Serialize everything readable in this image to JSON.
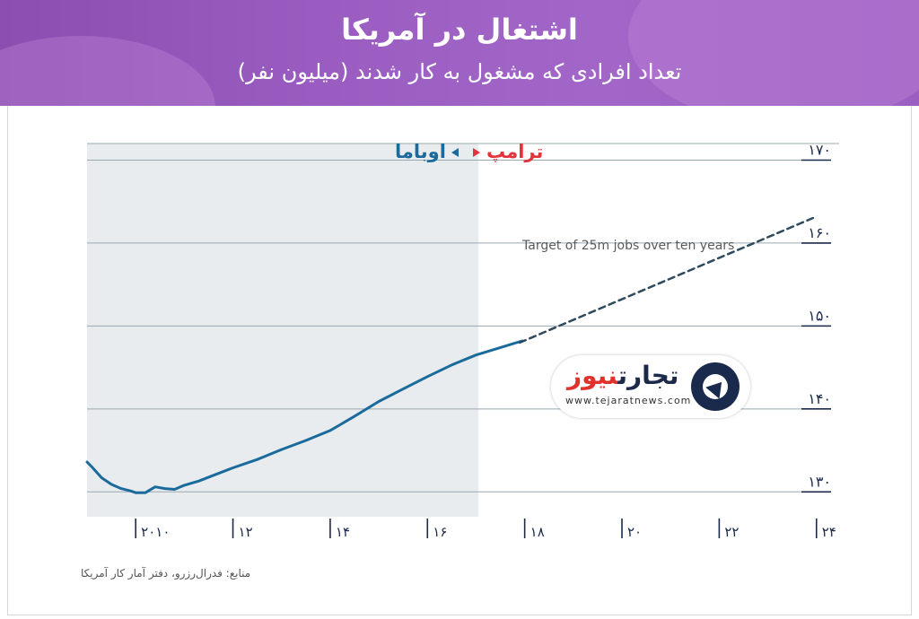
{
  "header": {
    "title": "اشتغال در آمریکا",
    "subtitle": "تعداد افرادی که مشغول به کار شدند (میلیون نفر)"
  },
  "source": "منابع: فدرال‌رزرو، دفتر آمار کار آمریکا",
  "logo": {
    "name_main": "تجارت",
    "name_accent": "نیوز",
    "url": "www.tejaratnews.com"
  },
  "colors": {
    "obama": "#1a6b9c",
    "trump": "#e2343d",
    "line": "#1a6b9c",
    "target": "#2e4a5c",
    "shade": "#e9ecee",
    "grid": "#9aa8b0",
    "axis": "#1c2a4a",
    "header": "#9a5cc0"
  },
  "chart_data": {
    "type": "line",
    "xlim": [
      2009,
      2024.3
    ],
    "ylim": [
      127,
      172
    ],
    "grid": true,
    "x_ticks": [
      {
        "value": 2010,
        "label": "۲۰۱۰"
      },
      {
        "value": 2012,
        "label": "۱۲"
      },
      {
        "value": 2014,
        "label": "۱۴"
      },
      {
        "value": 2016,
        "label": "۱۶"
      },
      {
        "value": 2018,
        "label": "۱۸"
      },
      {
        "value": 2020,
        "label": "۲۰"
      },
      {
        "value": 2022,
        "label": "۲۲"
      },
      {
        "value": 2024,
        "label": "۲۴"
      }
    ],
    "y_ticks": [
      {
        "value": 130,
        "label": "۱۳۰"
      },
      {
        "value": 140,
        "label": "۱۴۰"
      },
      {
        "value": 150,
        "label": "۱۵۰"
      },
      {
        "value": 160,
        "label": "۱۶۰"
      },
      {
        "value": 170,
        "label": "۱۷۰"
      }
    ],
    "shaded_region": {
      "from": 2009,
      "to": 2017.05
    },
    "period_labels": {
      "obama": "اوباما",
      "trump": "ترامپ"
    },
    "series": [
      {
        "style": "solid",
        "x": [
          2009.0,
          2009.1,
          2009.3,
          2009.5,
          2009.7,
          2009.9,
          2010.0,
          2010.2,
          2010.4,
          2010.6,
          2010.8,
          2011.0,
          2011.3,
          2011.6,
          2012.0,
          2012.5,
          2013.0,
          2013.5,
          2014.0,
          2014.5,
          2015.0,
          2015.5,
          2016.0,
          2016.5,
          2017.0,
          2017.5,
          2017.95
        ],
        "y": [
          133.6,
          133.0,
          131.7,
          130.9,
          130.4,
          130.1,
          129.9,
          129.9,
          130.6,
          130.4,
          130.3,
          130.8,
          131.3,
          132.0,
          132.9,
          133.9,
          135.1,
          136.2,
          137.4,
          139.1,
          140.9,
          142.4,
          143.9,
          145.3,
          146.5,
          147.4,
          148.2
        ]
      },
      {
        "name": "Target of 25m jobs over ten years",
        "style": "dashed",
        "x": [
          2017.9,
          2024.0
        ],
        "y": [
          148.0,
          163.2
        ]
      }
    ],
    "annotation": {
      "text": "Target of 25m jobs over ten years"
    }
  }
}
